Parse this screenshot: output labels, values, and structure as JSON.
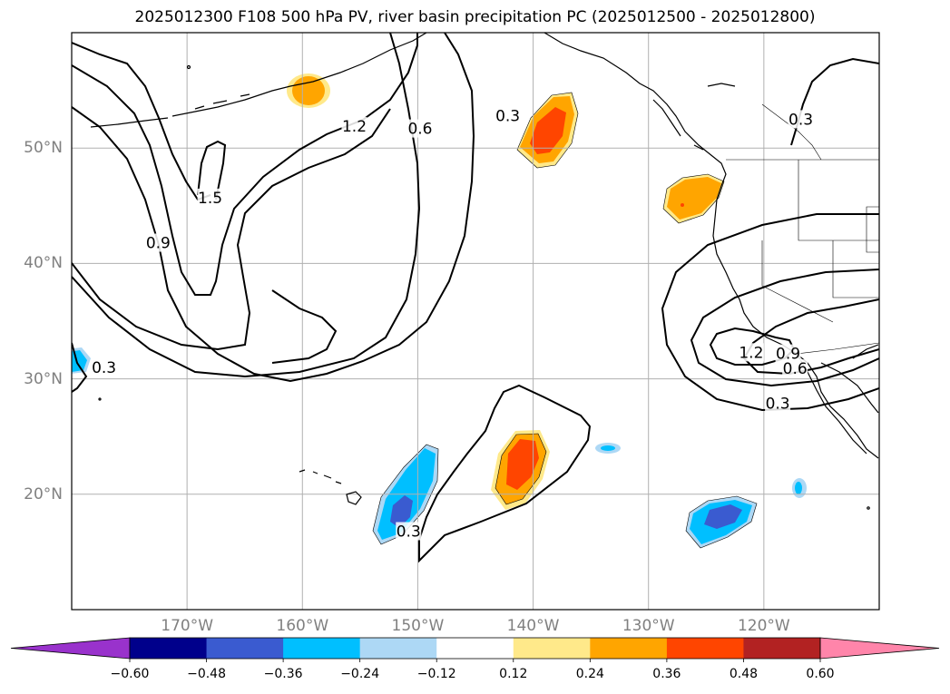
{
  "figure": {
    "title": "2025012300 F108 500 hPa PV, river basin precipitation PC (2025012500 - 2025012800)"
  },
  "map": {
    "projection": "PlateCarree",
    "extent": {
      "lon_min": -180,
      "lon_max": -110,
      "lat_min": 10,
      "lat_max": 60
    },
    "gridlines": true,
    "lon_ticks": [
      {
        "lon": -170,
        "label": "170°W"
      },
      {
        "lon": -160,
        "label": "160°W"
      },
      {
        "lon": -150,
        "label": "150°W"
      },
      {
        "lon": -140,
        "label": "140°W"
      },
      {
        "lon": -130,
        "label": "130°W"
      },
      {
        "lon": -120,
        "label": "120°W"
      }
    ],
    "lat_ticks": [
      {
        "lat": 50,
        "label": "50°N"
      },
      {
        "lat": 40,
        "label": "40°N"
      },
      {
        "lat": 30,
        "label": "30°N"
      },
      {
        "lat": 20,
        "label": "20°N"
      }
    ],
    "pv_contour_labels": [
      {
        "text": "1.5",
        "lon": -168,
        "lat": 45.7
      },
      {
        "text": "1.2",
        "lon": -155.5,
        "lat": 51.9
      },
      {
        "text": "0.9",
        "lon": -172.5,
        "lat": 41.8
      },
      {
        "text": "0.6",
        "lon": -149.8,
        "lat": 51.7
      },
      {
        "text": "0.3",
        "lon": -142.2,
        "lat": 52.8
      },
      {
        "text": "0.3",
        "lon": -177.2,
        "lat": 31.0
      },
      {
        "text": "0.3",
        "lon": -150.8,
        "lat": 16.8
      },
      {
        "text": "0.3",
        "lon": -116.8,
        "lat": 52.5
      },
      {
        "text": "1.2",
        "lon": -121.1,
        "lat": 32.3
      },
      {
        "text": "0.9",
        "lon": -117.9,
        "lat": 32.2
      },
      {
        "text": "0.6",
        "lon": -117.3,
        "lat": 30.9
      },
      {
        "text": "0.3",
        "lon": -118.8,
        "lat": 27.9
      }
    ],
    "precip_anomalies": [
      {
        "sign": "positive",
        "lon": -158.8,
        "lat": 55.0,
        "max_level": 0.24
      },
      {
        "sign": "positive",
        "lon": -140.3,
        "lat": 51.4,
        "max_level": 0.36
      },
      {
        "sign": "positive",
        "lon": -126.4,
        "lat": 45.7,
        "max_level": 0.24
      },
      {
        "sign": "positive",
        "lon": -141.4,
        "lat": 22.0,
        "max_level": 0.36
      },
      {
        "sign": "negative",
        "lon": -179.0,
        "lat": 31.6,
        "max_level": -0.24
      },
      {
        "sign": "negative",
        "lon": -151.1,
        "lat": 19.9,
        "max_level": -0.36
      },
      {
        "sign": "negative",
        "lon": -136.1,
        "lat": 23.9,
        "max_level": -0.12
      },
      {
        "sign": "negative",
        "lon": -123.6,
        "lat": 17.5,
        "max_level": -0.36
      },
      {
        "sign": "negative",
        "lon": -117.2,
        "lat": 20.5,
        "max_level": -0.24
      }
    ]
  },
  "colorbar": {
    "tick_labels": [
      "−0.60",
      "−0.48",
      "−0.36",
      "−0.24",
      "−0.12",
      "0.12",
      "0.24",
      "0.36",
      "0.48",
      "0.60"
    ],
    "bins": [
      {
        "range": "< -0.60",
        "color": "#9932cc"
      },
      {
        "range": "-0.60 to -0.48",
        "color": "#00008b"
      },
      {
        "range": "-0.48 to -0.36",
        "color": "#3a5bd0"
      },
      {
        "range": "-0.36 to -0.24",
        "color": "#00bfff"
      },
      {
        "range": "-0.24 to -0.12",
        "color": "#add8f5"
      },
      {
        "range": "-0.12 to 0.12",
        "color": "#ffffff"
      },
      {
        "range": "0.12 to 0.24",
        "color": "#ffe98a"
      },
      {
        "range": "0.24 to 0.36",
        "color": "#ffa500"
      },
      {
        "range": "0.36 to 0.48",
        "color": "#ff4500"
      },
      {
        "range": "0.48 to 0.60",
        "color": "#b22222"
      },
      {
        "range": "> 0.60",
        "color": "#ff85aa"
      }
    ]
  }
}
